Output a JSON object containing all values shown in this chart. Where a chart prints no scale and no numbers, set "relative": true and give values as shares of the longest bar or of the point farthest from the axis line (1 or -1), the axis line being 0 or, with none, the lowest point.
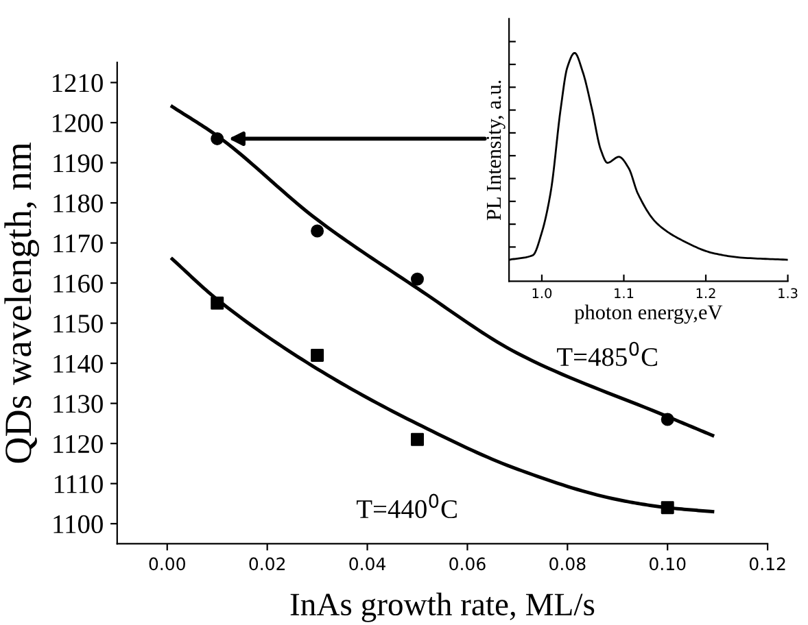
{
  "chart_data": [
    {
      "type": "scatter",
      "xlabel": "InAs growth rate, ML/s",
      "ylabel": "QDs wavelength, nm",
      "xlim": [
        -0.01,
        0.12
      ],
      "ylim": [
        1095,
        1215
      ],
      "xticks": [
        {
          "value": 0,
          "label": "0.00"
        },
        {
          "value": 0.02,
          "label": "0.02"
        },
        {
          "value": 0.04,
          "label": "0.04"
        },
        {
          "value": 0.06,
          "label": "0.06"
        },
        {
          "value": 0.08,
          "label": "0.08"
        },
        {
          "value": 0.1,
          "label": "0.10"
        },
        {
          "value": 0.12,
          "label": "0.12"
        }
      ],
      "yticks": [
        1100,
        1110,
        1120,
        1130,
        1140,
        1150,
        1160,
        1170,
        1180,
        1190,
        1200,
        1210
      ],
      "grid": false,
      "legend": false,
      "series": [
        {
          "type": "scatter",
          "marker": "circle",
          "color": "#000000",
          "x": [
            0.01,
            0.03,
            0.05,
            0.1
          ],
          "values": [
            1196,
            1173,
            1161,
            1126
          ]
        },
        {
          "type": "scatter",
          "marker": "square",
          "color": "#000000",
          "x": [
            0.01,
            0.03,
            0.05,
            0.1
          ],
          "values": [
            1155,
            1142,
            1121,
            1104
          ]
        },
        {
          "type": "line",
          "marker": "none",
          "line_style": "solid",
          "color": "#000000",
          "x": [
            0.001,
            0.01,
            0.03,
            0.05,
            0.07,
            0.1,
            0.109
          ],
          "values": [
            1204,
            1196.7,
            1175.8,
            1158.7,
            1142.5,
            1126.7,
            1122
          ]
        },
        {
          "type": "line",
          "marker": "none",
          "line_style": "solid",
          "color": "#000000",
          "x": [
            0.001,
            0.01,
            0.03,
            0.05,
            0.07,
            0.09,
            0.1,
            0.109
          ],
          "values": [
            1166,
            1155.9,
            1138.6,
            1124.9,
            1113.6,
            1106,
            1104,
            1103
          ]
        }
      ],
      "annotations": [
        "T=485$^{0}$C",
        "T=440$^{0}$C"
      ]
    },
    {
      "type": "line",
      "xlabel": "photon energy,eV",
      "ylabel": "PL Intensity, a.u.",
      "relative": true,
      "tick_labels": "x",
      "xlim": [
        0.96,
        1.3
      ],
      "xticks": [
        {
          "value": 1.0,
          "label": "1.0"
        },
        {
          "value": 1.1,
          "label": "1.1"
        },
        {
          "value": 1.2,
          "label": "1.2"
        },
        {
          "value": 1.3,
          "label": "1.3"
        }
      ],
      "grid": false,
      "legend": false,
      "series": [
        {
          "color": "#000000",
          "line_style": "solid",
          "x": [
            0.96,
            0.989,
            1.0,
            1.011,
            1.023,
            1.031,
            1.04,
            1.05,
            1.061,
            1.072,
            1.08,
            1.094,
            1.106,
            1.117,
            1.14,
            1.174,
            1.208,
            1.242,
            1.3
          ],
          "values": [
            0.094,
            0.114,
            0.214,
            0.395,
            0.756,
            0.936,
            1.0,
            0.916,
            0.756,
            0.575,
            0.519,
            0.545,
            0.495,
            0.385,
            0.255,
            0.174,
            0.124,
            0.104,
            0.094
          ]
        }
      ]
    }
  ]
}
